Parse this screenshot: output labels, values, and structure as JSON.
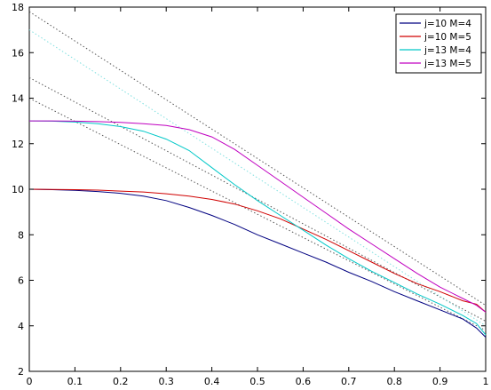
{
  "chart_data": {
    "type": "line",
    "title": "",
    "xlabel": "",
    "ylabel": "",
    "xlim": [
      0,
      1
    ],
    "ylim": [
      2,
      18
    ],
    "xticks": [
      0,
      0.1,
      0.2,
      0.3,
      0.4,
      0.5,
      0.6,
      0.7,
      0.8,
      0.9,
      1
    ],
    "yticks": [
      2,
      4,
      6,
      8,
      10,
      12,
      14,
      16,
      18
    ],
    "legend_position": "top-right",
    "grid": false,
    "series": [
      {
        "name": "j=10 M=4",
        "color": "#000080",
        "x": [
          0,
          0.05,
          0.1,
          0.15,
          0.2,
          0.25,
          0.3,
          0.35,
          0.4,
          0.45,
          0.5,
          0.55,
          0.6,
          0.65,
          0.7,
          0.75,
          0.8,
          0.85,
          0.9,
          0.95,
          0.98,
          1.0
        ],
        "y": [
          10.0,
          9.98,
          9.95,
          9.9,
          9.82,
          9.7,
          9.5,
          9.2,
          8.85,
          8.45,
          8.0,
          7.6,
          7.2,
          6.8,
          6.35,
          5.95,
          5.5,
          5.1,
          4.7,
          4.3,
          3.9,
          3.5
        ]
      },
      {
        "name": "j=10 M=5",
        "color": "#d00000",
        "x": [
          0,
          0.05,
          0.1,
          0.15,
          0.2,
          0.25,
          0.3,
          0.35,
          0.4,
          0.45,
          0.5,
          0.55,
          0.6,
          0.65,
          0.7,
          0.75,
          0.8,
          0.85,
          0.9,
          0.95,
          0.98,
          1.0
        ],
        "y": [
          10.0,
          9.99,
          9.98,
          9.96,
          9.92,
          9.88,
          9.8,
          9.7,
          9.55,
          9.35,
          9.05,
          8.7,
          8.25,
          7.8,
          7.3,
          6.8,
          6.3,
          5.85,
          5.5,
          5.1,
          4.95,
          4.6
        ]
      },
      {
        "name": "j=13 M=4",
        "color": "#00c8c8",
        "x": [
          0,
          0.05,
          0.1,
          0.15,
          0.2,
          0.25,
          0.3,
          0.35,
          0.4,
          0.45,
          0.5,
          0.55,
          0.6,
          0.65,
          0.7,
          0.75,
          0.8,
          0.85,
          0.9,
          0.95,
          0.98,
          1.0
        ],
        "y": [
          13.0,
          12.99,
          12.95,
          12.88,
          12.75,
          12.55,
          12.2,
          11.7,
          10.95,
          10.2,
          9.5,
          8.85,
          8.2,
          7.55,
          6.95,
          6.4,
          5.9,
          5.4,
          4.95,
          4.45,
          4.1,
          3.6
        ]
      },
      {
        "name": "j=13 M=5",
        "color": "#c000c0",
        "x": [
          0,
          0.05,
          0.1,
          0.15,
          0.2,
          0.25,
          0.3,
          0.35,
          0.4,
          0.45,
          0.5,
          0.55,
          0.6,
          0.65,
          0.7,
          0.75,
          0.8,
          0.85,
          0.9,
          0.95,
          0.98,
          1.0
        ],
        "y": [
          13.0,
          13.0,
          12.99,
          12.97,
          12.94,
          12.88,
          12.8,
          12.62,
          12.3,
          11.75,
          11.05,
          10.35,
          9.65,
          8.95,
          8.25,
          7.6,
          6.95,
          6.3,
          5.7,
          5.2,
          4.9,
          4.6
        ]
      }
    ],
    "reference_lines": [
      {
        "color": "#555555",
        "x": [
          0,
          1
        ],
        "y": [
          14.0,
          3.8
        ]
      },
      {
        "color": "#555555",
        "x": [
          0,
          1
        ],
        "y": [
          14.9,
          4.2
        ]
      },
      {
        "color": "#555555",
        "x": [
          0,
          1
        ],
        "y": [
          17.8,
          4.9
        ]
      },
      {
        "color": "#80e0e0",
        "x": [
          0,
          1
        ],
        "y": [
          17.0,
          4.0
        ]
      }
    ]
  }
}
